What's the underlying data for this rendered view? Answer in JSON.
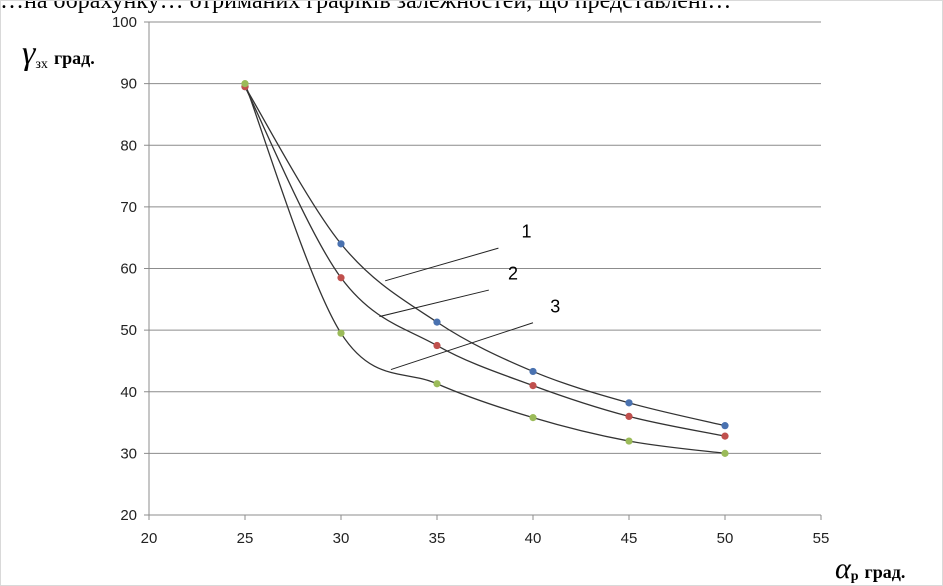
{
  "top_text": "…на обрахунку… отриманих графіків залежностей, що представлені…",
  "chart_data": {
    "type": "scatter",
    "y_axis_label": {
      "symbol": "γ",
      "subscript": "зх",
      "unit": "град."
    },
    "x_axis_label": {
      "symbol": "α",
      "subscript": "р",
      "unit": "град."
    },
    "xlim": [
      20,
      55
    ],
    "ylim": [
      20,
      100
    ],
    "x_ticks": [
      20,
      25,
      30,
      35,
      40,
      45,
      50,
      55
    ],
    "y_ticks": [
      20,
      30,
      40,
      50,
      60,
      70,
      80,
      90,
      100
    ],
    "grid": "horizontal",
    "series": [
      {
        "name": "1",
        "color": "#4a72b0",
        "x": [
          25,
          30,
          35,
          40,
          45,
          50
        ],
        "y": [
          89.5,
          64,
          51.3,
          43.3,
          38.2,
          34.5
        ]
      },
      {
        "name": "2",
        "color": "#c0504d",
        "x": [
          25,
          30,
          35,
          40,
          45,
          50
        ],
        "y": [
          89.5,
          58.5,
          47.5,
          41,
          36,
          32.8
        ]
      },
      {
        "name": "3",
        "color": "#9bbb59",
        "x": [
          25,
          30,
          35,
          40,
          45,
          50
        ],
        "y": [
          90,
          49.5,
          41.3,
          35.8,
          32,
          30
        ]
      }
    ],
    "annotations": [
      {
        "text": "1",
        "series": "1"
      },
      {
        "text": "2",
        "series": "2"
      },
      {
        "text": "3",
        "series": "3"
      }
    ]
  }
}
